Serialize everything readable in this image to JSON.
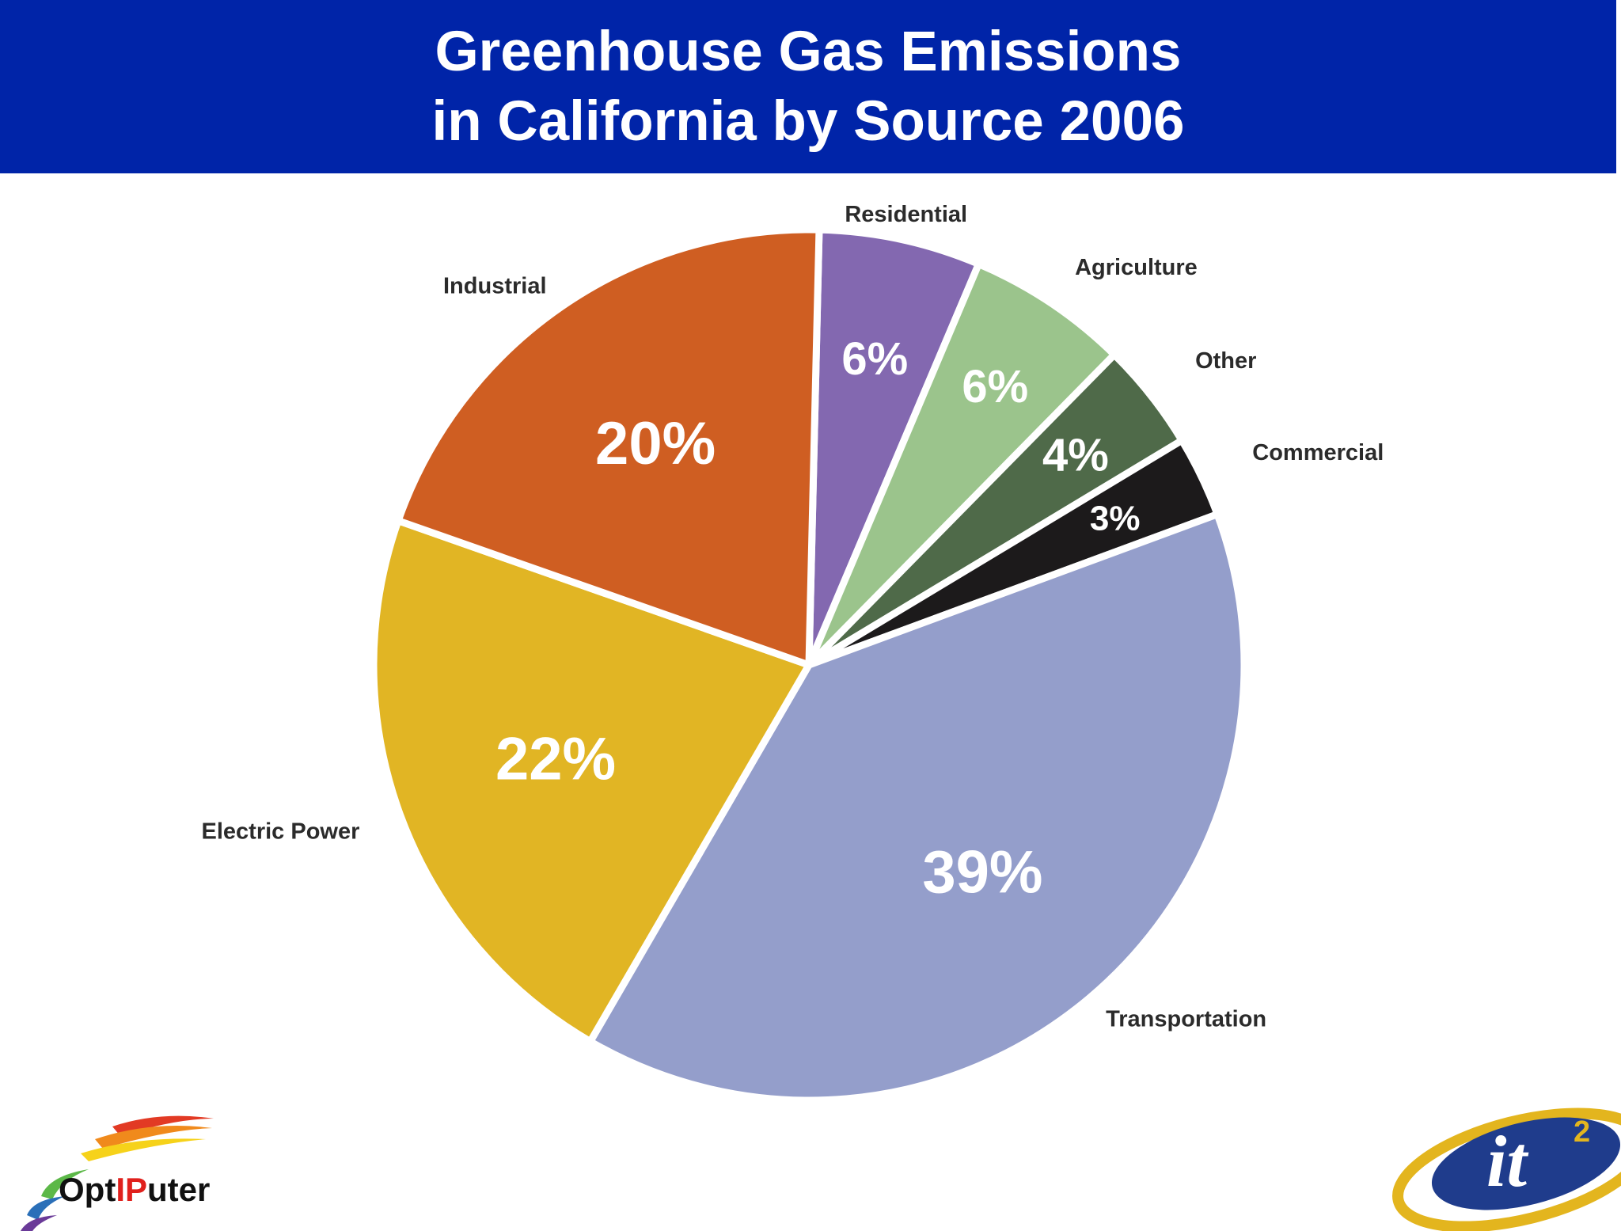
{
  "header": {
    "title_line1": "Greenhouse Gas Emissions",
    "title_line2": "in California by Source 2006"
  },
  "chart_data": {
    "type": "pie",
    "title": "Greenhouse Gas Emissions in California by Source 2006",
    "slices": [
      {
        "label": "Residential",
        "value": 6,
        "pct_text": "6%",
        "color": "#8368b0"
      },
      {
        "label": "Agriculture",
        "value": 6,
        "pct_text": "6%",
        "color": "#9bc48c"
      },
      {
        "label": "Other",
        "value": 4,
        "pct_text": "4%",
        "color": "#4f6a49"
      },
      {
        "label": "Commercial",
        "value": 3,
        "pct_text": "3%",
        "color": "#1c1a1b"
      },
      {
        "label": "Transportation",
        "value": 39,
        "pct_text": "39%",
        "color": "#949ecb"
      },
      {
        "label": "Electric Power",
        "value": 22,
        "pct_text": "22%",
        "color": "#e1b524"
      },
      {
        "label": "Industrial",
        "value": 20,
        "pct_text": "20%",
        "color": "#cf5e22"
      }
    ]
  },
  "logos": {
    "optiputer": {
      "text_a": "Opt",
      "text_b": "IP",
      "text_c": "uter"
    },
    "it2": {
      "text": "it",
      "superscript": "2"
    }
  },
  "colors": {
    "header_bg": "#0024a8",
    "header_text": "#ffffff",
    "optiputer_red": "#e0201c",
    "it2_blue": "#1f3c8c",
    "it2_gold": "#e3b51e"
  }
}
